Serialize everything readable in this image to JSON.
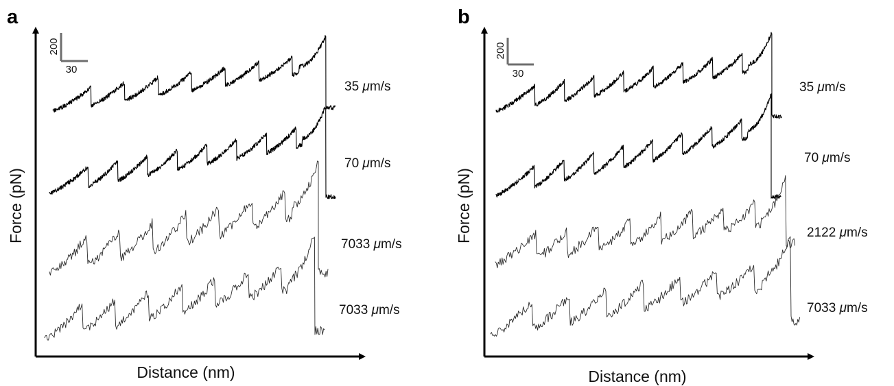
{
  "chart_data": [
    {
      "type": "line",
      "panel_label": "a",
      "xlabel": "Distance (nm)",
      "ylabel": "Force (pN)",
      "scale_bar": {
        "force": "200",
        "distance": "30"
      },
      "grid": false,
      "series": [
        {
          "name": "35 μm/s",
          "speed_value": "35",
          "speed_unit_mu": "μ",
          "speed_unit_rest": "m/s",
          "peaks": 8,
          "noise": "low",
          "end_drop": true
        },
        {
          "name": "70 μm/s",
          "speed_value": "70",
          "speed_unit_mu": "μ",
          "speed_unit_rest": "m/s",
          "peaks": 9,
          "noise": "low",
          "end_drop": true
        },
        {
          "name": "7033 μm/s",
          "speed_value": "7033",
          "speed_unit_mu": "μ",
          "speed_unit_rest": "m/s",
          "peaks": 8,
          "noise": "high",
          "end_drop": true
        },
        {
          "name": "7033 μm/s",
          "speed_value": "7033",
          "speed_unit_mu": "μ",
          "speed_unit_rest": "m/s",
          "peaks": 8,
          "noise": "high",
          "end_drop": true
        }
      ]
    },
    {
      "type": "line",
      "panel_label": "b",
      "xlabel": "Distance (nm)",
      "ylabel": "Force (pN)",
      "scale_bar": {
        "force": "200",
        "distance": "30"
      },
      "grid": false,
      "series": [
        {
          "name": "35 μm/s",
          "speed_value": "35",
          "speed_unit_mu": "μ",
          "speed_unit_rest": "m/s",
          "peaks": 9,
          "noise": "low",
          "end_drop": true
        },
        {
          "name": "70 μm/s",
          "speed_value": "70",
          "speed_unit_mu": "μ",
          "speed_unit_rest": "m/s",
          "peaks": 9,
          "noise": "low",
          "end_drop": true
        },
        {
          "name": "2122 μm/s",
          "speed_value": "2122",
          "speed_unit_mu": "μ",
          "speed_unit_rest": "m/s",
          "peaks": 9,
          "noise": "high",
          "end_drop": true
        },
        {
          "name": "7033 μm/s",
          "speed_value": "7033",
          "speed_unit_mu": "μ",
          "speed_unit_rest": "m/s",
          "peaks": 8,
          "noise": "high",
          "end_drop": true
        }
      ]
    }
  ]
}
